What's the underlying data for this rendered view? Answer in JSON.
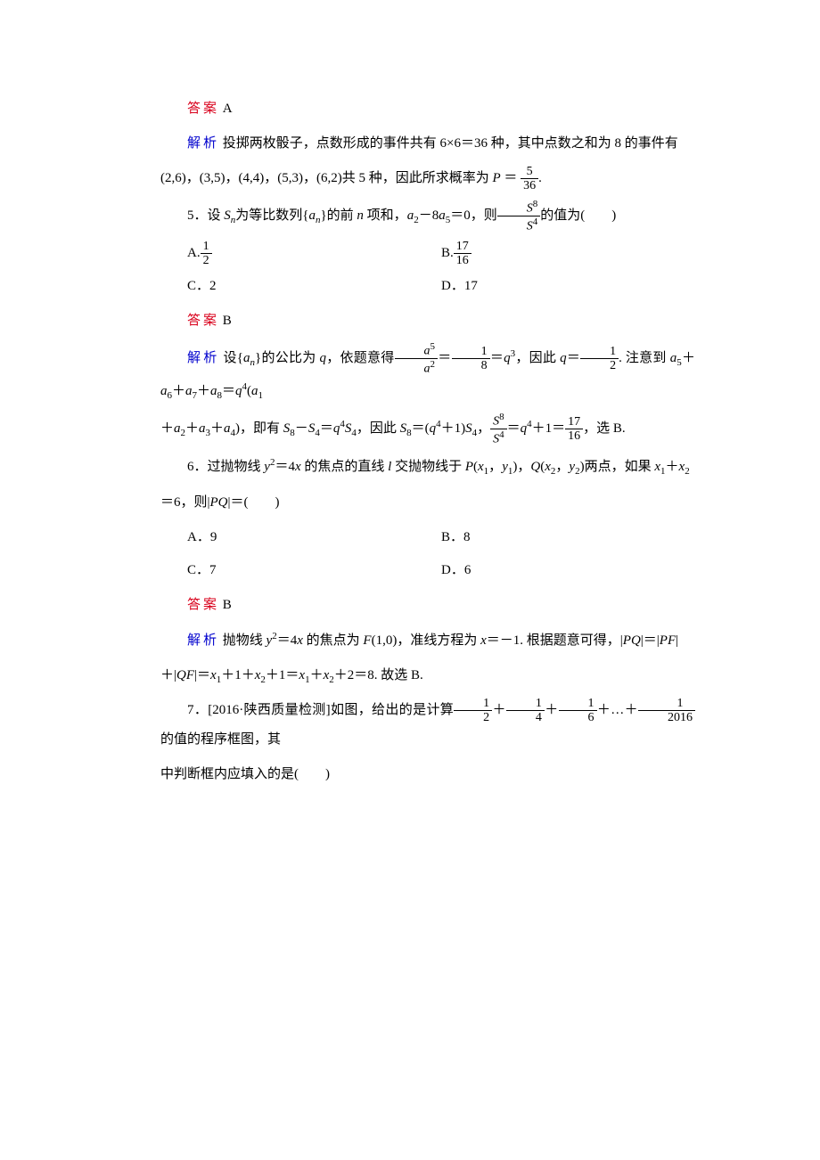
{
  "page": {
    "background_color": "#ffffff",
    "text_color": "#000000",
    "answer_color": "#d9001b",
    "analysis_color": "#0000cd",
    "font_family": "SimSun",
    "font_size_pt": 11,
    "italic_latin_font": "Times New Roman"
  },
  "q4": {
    "answer_label": "答案",
    "answer_value": "A",
    "analysis_label": "解析",
    "analysis_line1_a": "投掷两枚骰子，点数形成的事件共有 6×6＝36 种，其中点数之和为 8 的事件有",
    "analysis_line2_a": "(2,6)，(3,5)，(4,4)，(5,3)，(6,2)共 5 种，因此所求概率为 ",
    "analysis_line2_b": "＝",
    "P": "P",
    "frac": {
      "num": "5",
      "den": "36"
    },
    "dot": "."
  },
  "q5": {
    "stem_a": "5．设 ",
    "Sn": "S",
    "n": "n",
    "stem_b": "为等比数列{",
    "an": "a",
    "ann": "n",
    "stem_c": "}的前 ",
    "n_it": "n",
    "stem_d": " 项和，",
    "a2": "a",
    "a2s": "2",
    "minus8": "－8",
    "a5": "a",
    "a5s": "5",
    "eq0": "＝0，则",
    "frac_lbl": {
      "num": "S",
      "num_sup": "8",
      "den": "S",
      "den_sup": "4"
    },
    "stem_e": "的值为(　　)",
    "optA_lbl": "A.",
    "optA_frac": {
      "num": "1",
      "den": "2"
    },
    "optB_lbl": "B.",
    "optB_frac": {
      "num": "17",
      "den": "16"
    },
    "optC": "C．2",
    "optD": "D．17",
    "answer_label": "答案",
    "answer_value": "B",
    "analysis_label": "解析",
    "ana_a": "设{",
    "ana_b": "}的公比为 ",
    "q": "q",
    "ana_c": "，依题意得",
    "frac1": {
      "num": "a",
      "num_sup": "5",
      "den": "a",
      "den_sup": "2"
    },
    "eq": "＝",
    "frac2": {
      "num": "1",
      "den": "8"
    },
    "eq_q3": "＝",
    "q3": "q",
    "q3sup": "3",
    "ana_d": "，因此 ",
    "eq_half": "＝",
    "frac3": {
      "num": "1",
      "den": "2"
    },
    "ana_e": ". 注意到 ",
    "a5t": "a",
    "a5ts": "5",
    "plus": "＋",
    "a6": "a",
    "a6s": "6",
    "a7": "a",
    "a7s": "7",
    "a8": "a",
    "a8s": "8",
    "eq2": "＝",
    "q4": "q",
    "q4sup": "4",
    "lp": "(",
    "a1": "a",
    "a1s": "1",
    "line2_a": "＋",
    "a2b": "a",
    "a2bs": "2",
    "a3": "a",
    "a3s": "3",
    "a4": "a",
    "a4s": "4",
    "rp": ")，即有 ",
    "S8": "S",
    "S8s": "8",
    "minus": "－",
    "S4": "S",
    "S4s": "4",
    "eq3": "＝",
    "q4b": "q",
    "q4bsup": "4",
    "S4b": "S",
    "S4bs": "4",
    "comma": "，因此 ",
    "S8b": "S",
    "S8bs": "8",
    "eq4": "＝(",
    "plus1": "＋1)",
    "comma2": "，",
    "frac4": {
      "num": "S",
      "num_sup": "8",
      "den": "S",
      "den_sup": "4"
    },
    "eq5": "＝",
    "plus1b": "＋1＝",
    "frac5": {
      "num": "17",
      "den": "16"
    },
    "sel": "，选 B."
  },
  "q6": {
    "stem_a": "6．过抛物线 ",
    "y2": "y",
    "y2sup": "2",
    "eq4x": "＝4",
    "x": "x",
    "stem_b": " 的焦点的直线 ",
    "l": "l",
    "stem_c": " 交抛物线于 ",
    "P": "P",
    "lp": "(",
    "x1": "x",
    "x1s": "1",
    "c": "，",
    "y1": "y",
    "y1s": "1",
    "rp": ")",
    "Q": "Q",
    "x2": "x",
    "x2s": "2",
    "y2b": "y",
    "y2s": "2",
    "stem_d": "两点，如果 ",
    "plus": "＋",
    "line2": "＝6，则|",
    "PQ": "PQ",
    "line2b": "|＝(　　)",
    "optA": "A．9",
    "optB": "B．8",
    "optC": "C．7",
    "optD": "D．6",
    "answer_label": "答案",
    "answer_value": "B",
    "analysis_label": "解析",
    "ana_a": "抛物线 ",
    "ana_b": " 的焦点为 ",
    "F": "F",
    "F10": "(1,0)",
    "ana_c": "，准线方程为 ",
    "xeq": "x",
    "neg1": "＝－1. 根据题意可得，|",
    "eqv": "|＝|",
    "PF": "PF",
    "line3_a": "＋|",
    "QF": "QF",
    "line3_b": "|＝",
    "p1": "＋1＋",
    "p1b": "＋1＝",
    "p2": "＋2＝8. 故选 B."
  },
  "q7": {
    "stem_a": "7．[2016·陕西质量检测]如图，给出的是计算",
    "f1": {
      "num": "1",
      "den": "2"
    },
    "plus": "＋",
    "f2": {
      "num": "1",
      "den": "4"
    },
    "f3": {
      "num": "1",
      "den": "6"
    },
    "dots": "＋…＋",
    "f4": {
      "num": "1",
      "den": "2016"
    },
    "stem_b": "的值的程序框图，其",
    "line2": "中判断框内应填入的是(　　)"
  }
}
